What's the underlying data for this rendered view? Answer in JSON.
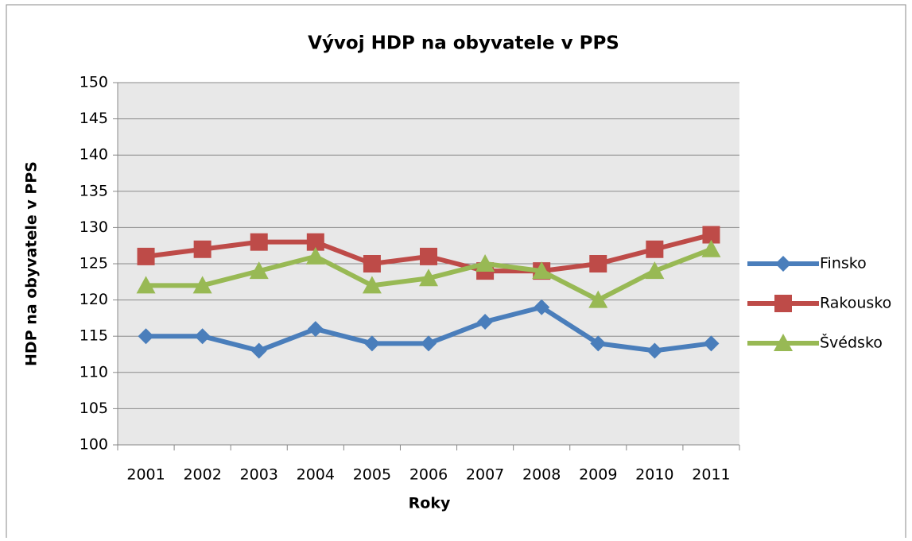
{
  "chart_data": {
    "type": "line",
    "title": "Vývoj HDP na obyvatele v PPS",
    "xlabel": "Roky",
    "ylabel": "HDP na obyvatele v PPS",
    "categories": [
      "2001",
      "2002",
      "2003",
      "2004",
      "2005",
      "2006",
      "2007",
      "2008",
      "2009",
      "2010",
      "2011"
    ],
    "series": [
      {
        "name": "Finsko",
        "color": "#4a7ebb",
        "marker": "diamond",
        "values": [
          115,
          115,
          113,
          116,
          114,
          114,
          117,
          119,
          114,
          113,
          114
        ]
      },
      {
        "name": "Rakousko",
        "color": "#be4b48",
        "marker": "square",
        "values": [
          126,
          127,
          128,
          128,
          125,
          126,
          124,
          124,
          125,
          127,
          129
        ]
      },
      {
        "name": "Švédsko",
        "color": "#98b954",
        "marker": "triangle",
        "values": [
          122,
          122,
          124,
          126,
          122,
          123,
          125,
          124,
          120,
          124,
          127
        ]
      }
    ],
    "ylim": [
      100,
      150
    ],
    "yticks": [
      100,
      105,
      110,
      115,
      120,
      125,
      130,
      135,
      140,
      145,
      150
    ],
    "grid": true,
    "legend": "right"
  }
}
